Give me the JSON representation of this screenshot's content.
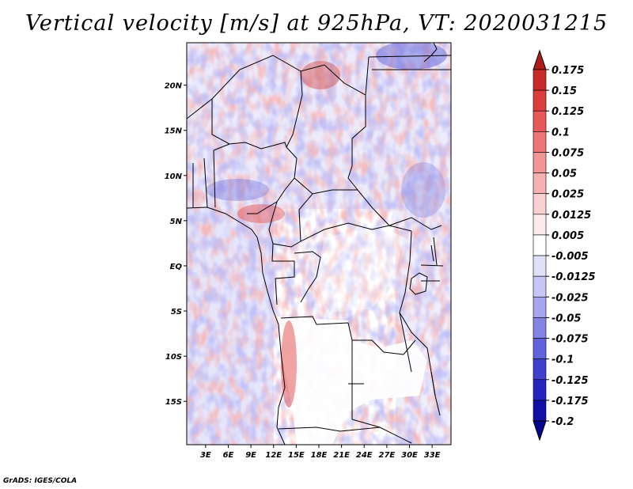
{
  "title": "Vertical velocity [m/s] at 925hPa, VT: 2020031215",
  "footer": "GrADS: IGES/COLA",
  "map": {
    "variable": "Vertical velocity",
    "units": "m/s",
    "level": "925hPa",
    "valid_time": "2020031215",
    "lat_labels": [
      "20N",
      "15N",
      "10N",
      "5N",
      "EQ",
      "5S",
      "10S",
      "15S"
    ],
    "lat_values": [
      20,
      15,
      10,
      5,
      0,
      -5,
      -10,
      -15
    ],
    "lon_labels": [
      "3E",
      "6E",
      "9E",
      "12E",
      "15E",
      "18E",
      "21E",
      "24E",
      "27E",
      "30E",
      "33E"
    ],
    "lon_values": [
      3,
      6,
      9,
      12,
      15,
      18,
      21,
      24,
      27,
      30,
      33
    ],
    "lon_range": [
      0.5,
      35.5
    ],
    "lat_range": [
      -19.8,
      24.7
    ]
  },
  "colorbar": {
    "labels": [
      "0.175",
      "0.15",
      "0.125",
      "0.1",
      "0.075",
      "0.05",
      "0.025",
      "0.0125",
      "0.005",
      "-0.005",
      "-0.0125",
      "-0.025",
      "-0.05",
      "-0.075",
      "-0.1",
      "-0.125",
      "-0.175",
      "-0.2"
    ],
    "colors": [
      "#b01c1c",
      "#c82a2a",
      "#dc3c3c",
      "#e85a5a",
      "#ee7676",
      "#f29595",
      "#f6b2b2",
      "#fad0d0",
      "#fdeaea",
      "#ffffff",
      "#e0e0fb",
      "#c6c6f6",
      "#a6a6ef",
      "#8484e6",
      "#6262dc",
      "#4040cf",
      "#2424bf",
      "#1010a8",
      "#050590"
    ],
    "top_arrow_color": "#b01c1c",
    "bottom_arrow_color": "#050590"
  }
}
